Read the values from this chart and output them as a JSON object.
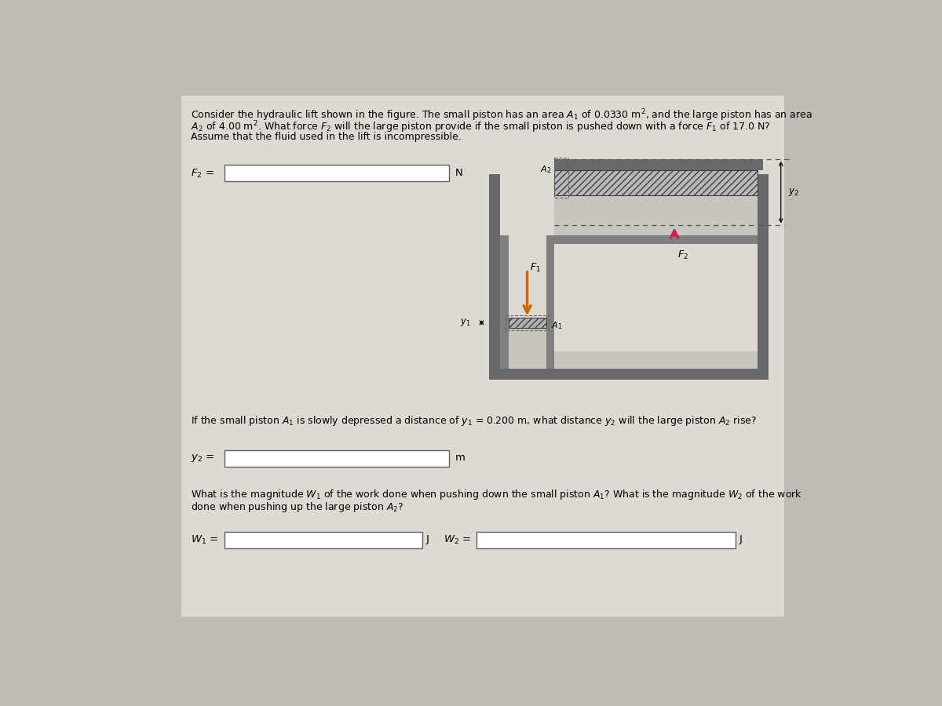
{
  "bg_color": "#c0bbb4",
  "paper_color": "#dedad3",
  "fs_body": 9.0,
  "fs_label": 9.5,
  "line1": "Consider the hydraulic lift shown in the figure. The small piston has an area $A_1$ of 0.0330 m$^2$, and the large piston has an area",
  "line2": "$A_2$ of 4.00 m$^2$. What force $F_2$ will the large piston provide if the small piston is pushed down with a force $F_1$ of 17.0 N?",
  "line3": "Assume that the fluid used in the lift is incompressible.",
  "f2_label": "$F_2$ =",
  "f2_unit": "N",
  "q2_text": "If the small piston $A_1$ is slowly depressed a distance of $y_1$ = 0.200 m, what distance $y_2$ will the large piston $A_2$ rise?",
  "y2_label": "$y_2$ =",
  "y2_unit": "m",
  "q3_line1": "What is the magnitude $W_1$ of the work done when pushing down the small piston $A_1$? What is the magnitude $W_2$ of the work",
  "q3_line2": "done when pushing up the large piston $A_2$?",
  "w1_label": "$W_1$ =",
  "w1_unit": "J",
  "w2_label": "$W_2$ =",
  "w2_unit": "J"
}
